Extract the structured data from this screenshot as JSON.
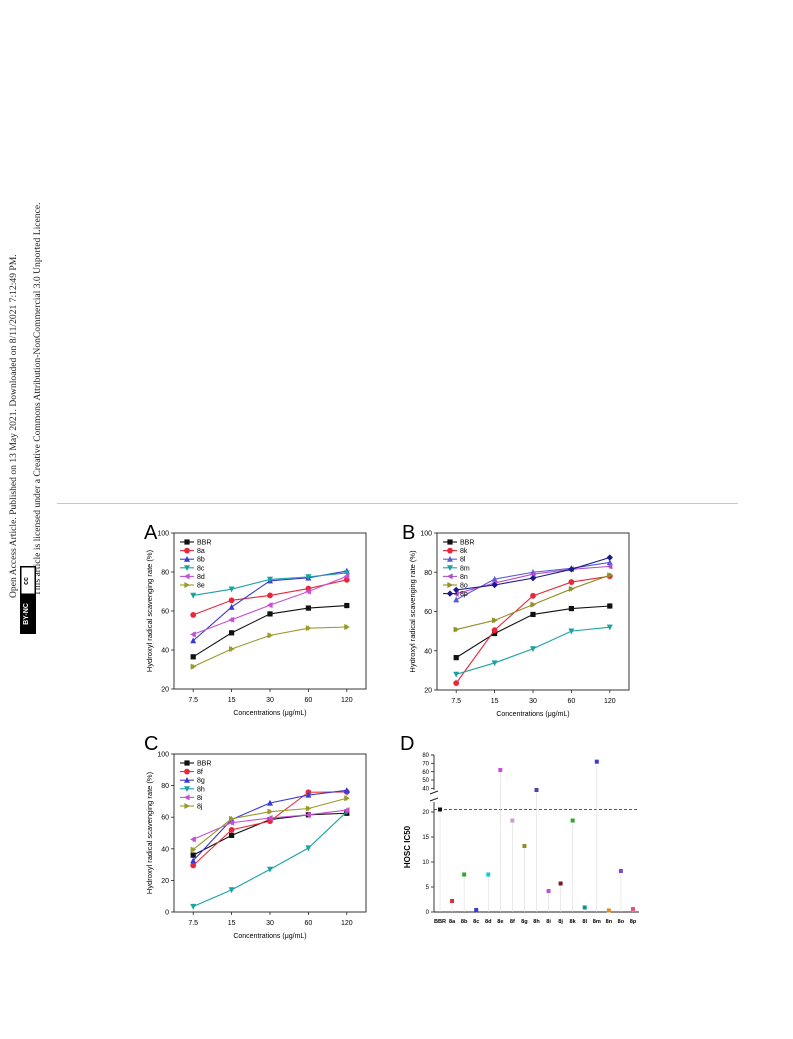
{
  "side_notice": {
    "line1": "Open Access Article. Published on 13 May 2021. Downloaded on 8/11/2021 7:12:49 PM.",
    "line2": "This article is licensed under a Creative Commons Attribution-NonCommercial 3.0 Unported Licence.",
    "badge_cc": "cc",
    "badge_bync": "BY-NC"
  },
  "colors": {
    "BBR": "#111111",
    "8a": "#e8283a",
    "8b": "#3a3ad0",
    "8c": "#1aa3a3",
    "8d": "#c64fd6",
    "8e": "#9a9a2a",
    "8k": "#e8283a",
    "8l": "#5a5ad6",
    "8m": "#1aa3a3",
    "8n": "#b04fc8",
    "8o": "#8f8f2a",
    "8p": "#1a1a8a",
    "8f": "#e8283a",
    "8g": "#3a3ad0",
    "8h": "#1aa3a3",
    "8i": "#c64fd6",
    "8j": "#9a9a2a"
  },
  "chart_data": [
    {
      "panel": "A",
      "type": "line",
      "xlabel": "Concentrations (μg/mL)",
      "ylabel": "Hydroxyl radical scavenging rate (%)",
      "categories": [
        "7.5",
        "15",
        "30",
        "60",
        "120"
      ],
      "ylim": [
        20,
        100
      ],
      "yticks": [
        "20",
        "40",
        "60",
        "80",
        "100"
      ],
      "legend_position": "top-left",
      "series": [
        {
          "name": "BBR",
          "values": [
            36.5,
            48.8,
            58.5,
            61.5,
            62.8
          ]
        },
        {
          "name": "8a",
          "values": [
            58.0,
            65.5,
            68.0,
            71.5,
            76.0
          ]
        },
        {
          "name": "8b",
          "values": [
            44.8,
            62.0,
            75.5,
            77.0,
            80.5
          ]
        },
        {
          "name": "8c",
          "values": [
            68.0,
            71.2,
            76.2,
            77.5,
            79.5
          ]
        },
        {
          "name": "8d",
          "values": [
            48.0,
            55.5,
            63.0,
            70.0,
            77.8
          ]
        },
        {
          "name": "8e",
          "values": [
            31.5,
            40.5,
            47.5,
            51.2,
            51.8
          ]
        }
      ]
    },
    {
      "panel": "B",
      "type": "line",
      "xlabel": "Concentrations (μg/mL)",
      "ylabel": "Hydroxyl radical scavenging rate (%)",
      "categories": [
        "7.5",
        "15",
        "30",
        "60",
        "120"
      ],
      "ylim": [
        20,
        100
      ],
      "yticks": [
        "20",
        "40",
        "60",
        "80",
        "100"
      ],
      "legend_position": "top-left",
      "series": [
        {
          "name": "BBR",
          "values": [
            36.5,
            48.8,
            58.5,
            61.5,
            62.8
          ]
        },
        {
          "name": "8k",
          "values": [
            23.5,
            50.5,
            68.0,
            75.0,
            78.0
          ]
        },
        {
          "name": "8l",
          "values": [
            66.0,
            76.5,
            80.0,
            82.0,
            85.0
          ]
        },
        {
          "name": "8m",
          "values": [
            28.0,
            33.8,
            41.0,
            50.0,
            52.0
          ]
        },
        {
          "name": "8n",
          "values": [
            69.0,
            74.5,
            79.0,
            81.5,
            83.0
          ]
        },
        {
          "name": "8o",
          "values": [
            50.8,
            55.5,
            63.5,
            71.5,
            78.5
          ]
        },
        {
          "name": "8p",
          "values": [
            71.0,
            73.5,
            77.0,
            81.5,
            87.5
          ]
        }
      ]
    },
    {
      "panel": "C",
      "type": "line",
      "xlabel": "Concentrations (μg/mL)",
      "ylabel": "Hydroxyl radical scavenging rate (%)",
      "categories": [
        "7.5",
        "15",
        "30",
        "60",
        "120"
      ],
      "ylim": [
        0,
        100
      ],
      "yticks": [
        "0",
        "20",
        "40",
        "60",
        "80",
        "100"
      ],
      "legend_position": "top-left",
      "series": [
        {
          "name": "BBR",
          "values": [
            36.0,
            48.5,
            58.5,
            61.5,
            62.5
          ]
        },
        {
          "name": "8f",
          "values": [
            29.5,
            52.0,
            57.5,
            75.8,
            76.0
          ]
        },
        {
          "name": "8g",
          "values": [
            32.5,
            58.5,
            69.0,
            74.0,
            77.0
          ]
        },
        {
          "name": "8h",
          "values": [
            3.5,
            14.0,
            27.0,
            40.5,
            63.5
          ]
        },
        {
          "name": "8i",
          "values": [
            46.0,
            56.5,
            59.5,
            61.5,
            64.5
          ]
        },
        {
          "name": "8j",
          "values": [
            39.5,
            59.0,
            63.5,
            65.5,
            72.0
          ]
        }
      ]
    },
    {
      "panel": "D",
      "type": "scatter",
      "ylabel": "HOSC IC50",
      "categories": [
        "BBR",
        "8a",
        "8b",
        "8c",
        "8d",
        "8e",
        "8f",
        "8g",
        "8h",
        "8i",
        "8j",
        "8k",
        "8l",
        "8m",
        "8n",
        "8o",
        "8p"
      ],
      "values": [
        20.5,
        2.2,
        7.5,
        0.4,
        7.5,
        62.0,
        18.3,
        13.2,
        38.0,
        4.2,
        5.7,
        18.3,
        0.9,
        72.0,
        0.3,
        8.2,
        0.6
      ],
      "point_colors": [
        "#111111",
        "#e8283a",
        "#2aa82a",
        "#3a3ad0",
        "#1ac9c9",
        "#c64fd6",
        "#c99ad6",
        "#8f8f2a",
        "#4a4aa6",
        "#c64fd6",
        "#7a1a1a",
        "#2aa82a",
        "#1a8a8a",
        "#3a3ad0",
        "#e88a1a",
        "#7a4ad6",
        "#e8508a"
      ],
      "yticks_lower": [
        "0",
        "5",
        "10",
        "15",
        "20"
      ],
      "yticks_upper": [
        "40",
        "50",
        "60",
        "70",
        "80"
      ],
      "axis_break": "22–38",
      "reference_line": 20.5
    }
  ],
  "panel_labels": [
    "A",
    "B",
    "C",
    "D"
  ]
}
